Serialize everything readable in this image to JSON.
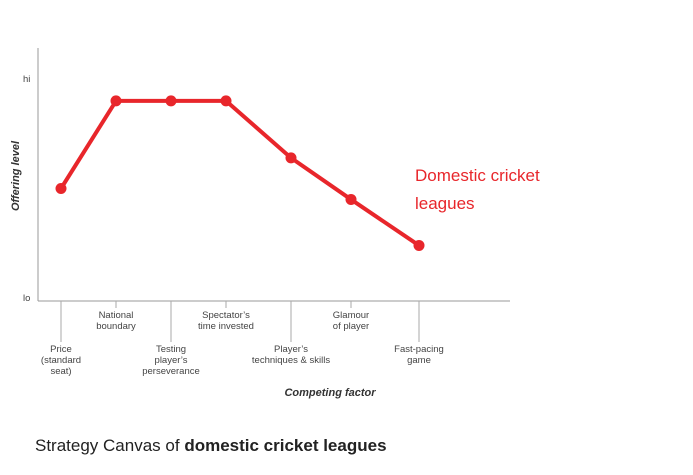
{
  "chart_data": {
    "type": "line",
    "xlabel": "Competing factor",
    "ylabel": "Offering level",
    "y_ticks": [
      "hi",
      "lo"
    ],
    "ylim": [
      0,
      1
    ],
    "categories": [
      [
        "Price",
        "(standard",
        "seat)"
      ],
      [
        "National",
        "boundary"
      ],
      [
        "Testing",
        "player’s",
        "perseverance"
      ],
      [
        "Spectator’s",
        "time invested"
      ],
      [
        "Player’s",
        "techniques & skills"
      ],
      [
        "Glamour",
        "of player"
      ],
      [
        "Fast-pacing",
        "game"
      ]
    ],
    "series": [
      {
        "name_lines": [
          "Domestic cricket",
          "leagues"
        ],
        "color": "#e8262b",
        "values": [
          0.5,
          0.9,
          0.9,
          0.9,
          0.64,
          0.45,
          0.24
        ]
      }
    ],
    "grid": false
  },
  "caption": {
    "prefix": "Strategy Canvas of ",
    "bold": "domestic cricket leagues"
  }
}
